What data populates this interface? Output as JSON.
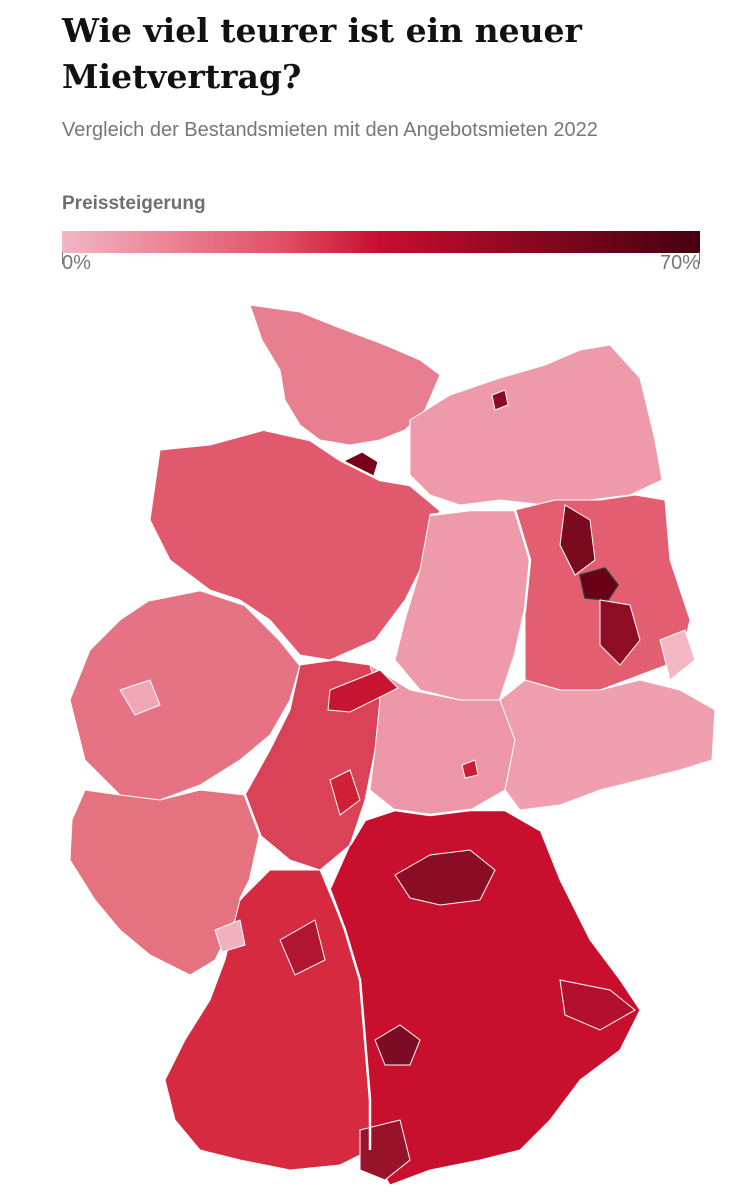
{
  "header": {
    "title": "Wie viel teurer ist ein neuer Mietvertrag?",
    "subtitle": "Vergleich der Bestandsmieten mit den Angebotsmieten 2022"
  },
  "legend": {
    "title": "Preissteigerung",
    "min_label": "0%",
    "max_label": "70%",
    "scale_min": 0,
    "scale_max": 70,
    "colors": [
      "#f3b6c4",
      "#e14d63",
      "#c80d2e",
      "#45000f"
    ]
  },
  "map": {
    "colors": {
      "lightest": "#f2b0be",
      "light": "#eb8797",
      "medium": "#e05d6f",
      "strong": "#d2283f",
      "darkred": "#a50d26",
      "darkest": "#6e0016",
      "border_state": "#ffffff"
    }
  }
}
